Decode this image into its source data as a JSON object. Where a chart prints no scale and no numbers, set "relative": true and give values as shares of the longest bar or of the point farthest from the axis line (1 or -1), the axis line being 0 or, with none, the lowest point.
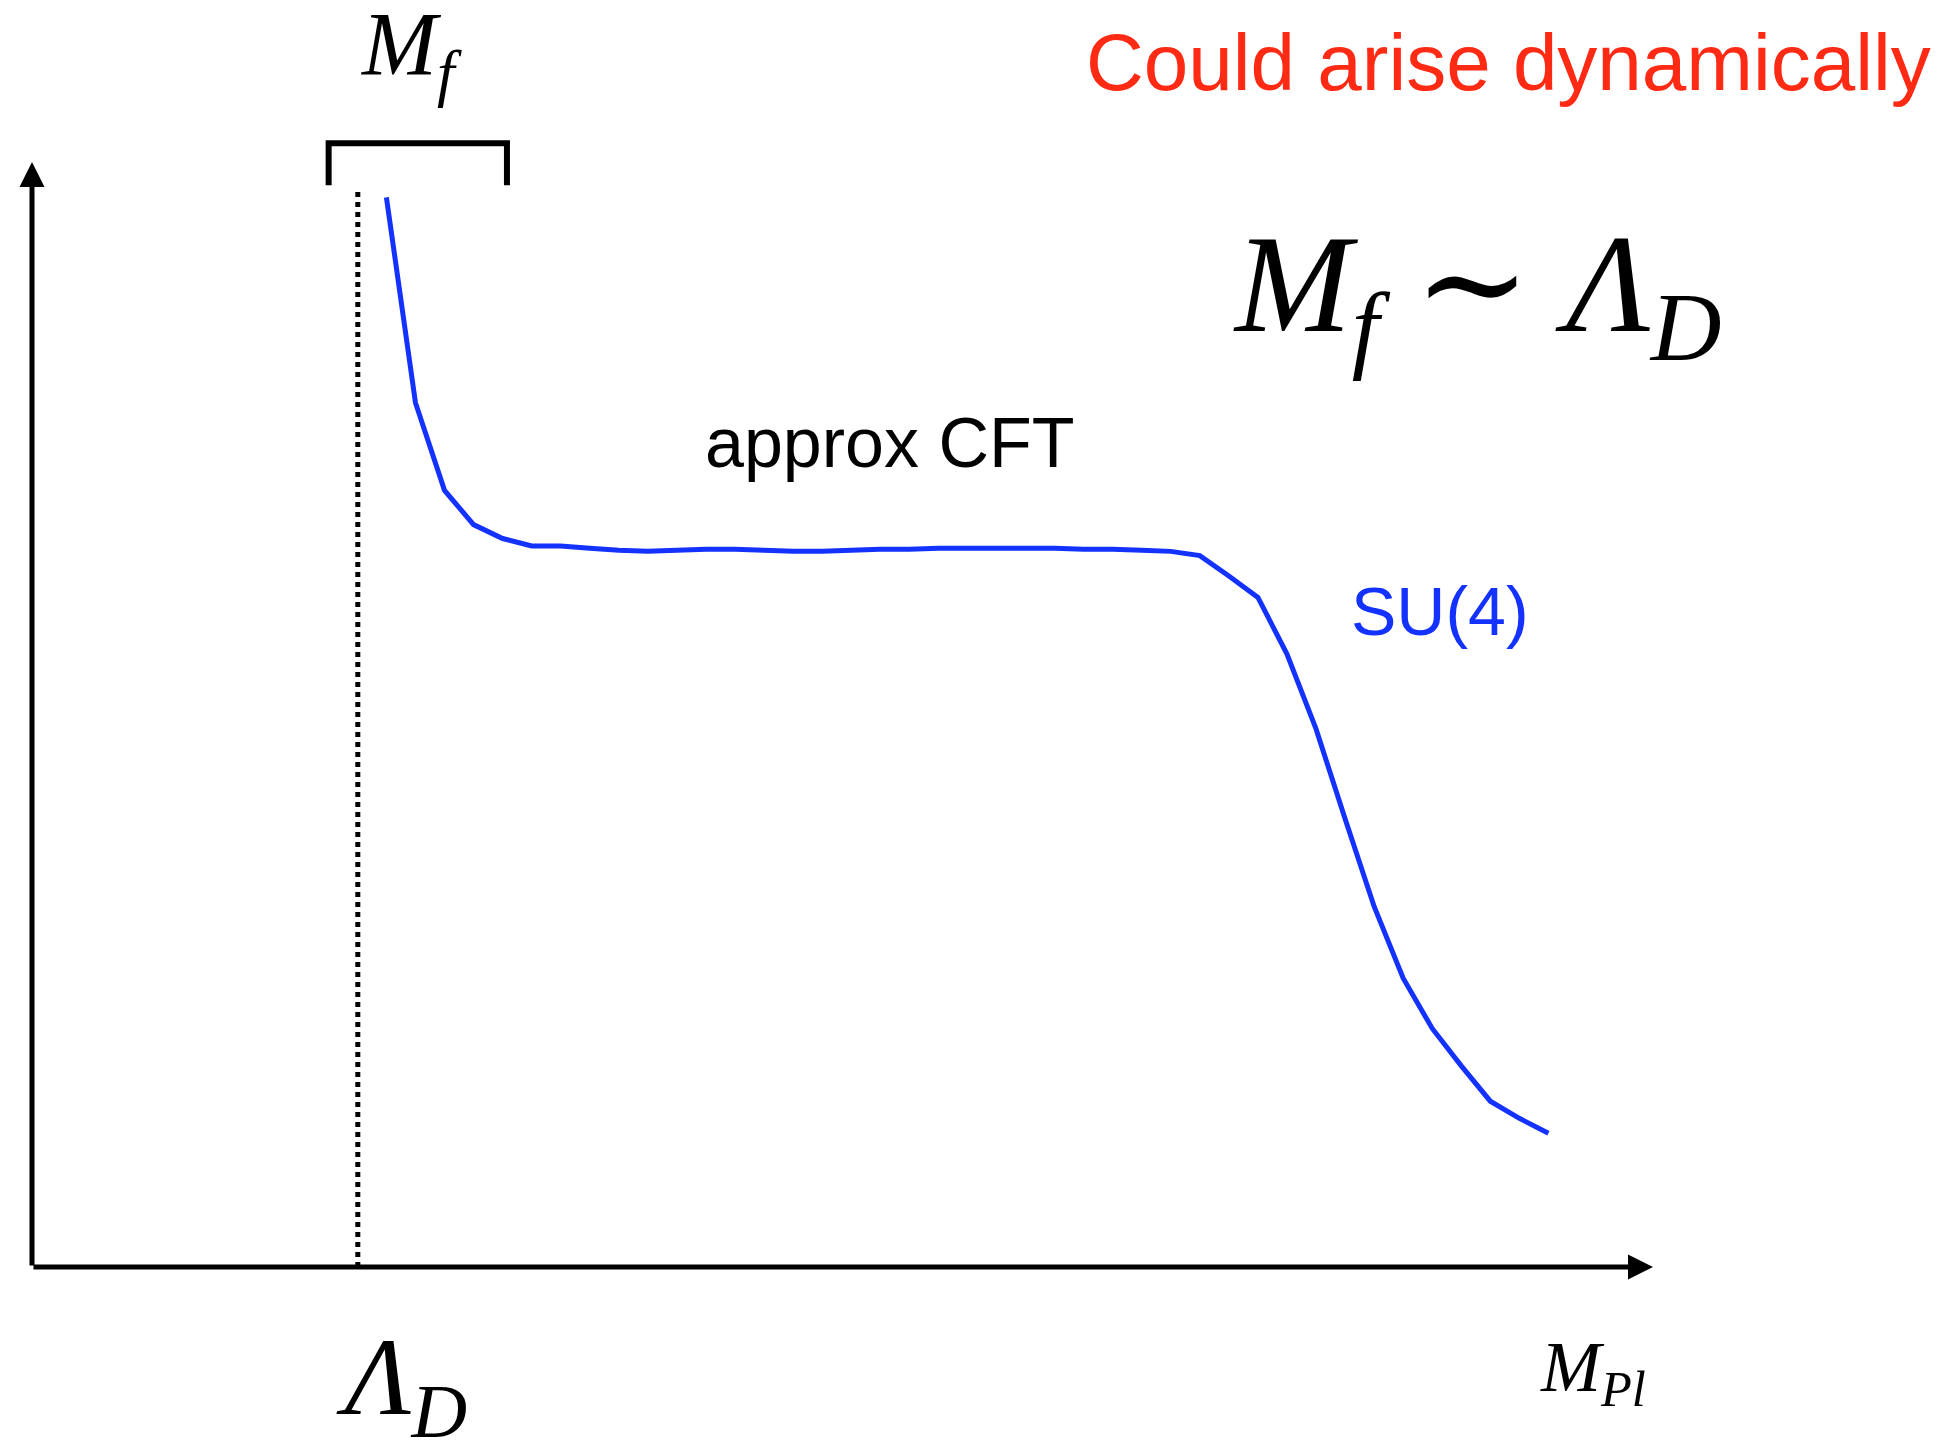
{
  "chart_data": {
    "type": "line",
    "relative": true,
    "legend": false,
    "marker": "none",
    "line_style": "solid",
    "xlabel": "M$_{Pl}$",
    "categories": [
      null,
      null,
      null,
      null,
      null,
      null,
      null,
      null,
      null,
      null,
      null,
      null,
      null,
      null,
      null,
      null,
      null,
      null,
      null,
      null,
      null,
      null,
      null,
      null,
      null,
      null,
      null,
      null,
      null,
      null,
      null,
      null,
      null,
      null,
      null,
      null,
      null,
      null,
      null,
      null,
      null
    ],
    "series": [
      {
        "name": "SU(4)",
        "color": "#1432ff",
        "values": [
          1.0,
          0.808,
          0.726,
          0.694,
          0.681,
          0.674,
          0.674,
          0.672,
          0.67,
          0.669,
          0.67,
          0.671,
          0.671,
          0.67,
          0.669,
          0.669,
          0.67,
          0.671,
          0.671,
          0.672,
          0.672,
          0.672,
          0.672,
          0.672,
          0.671,
          0.671,
          0.67,
          0.669,
          0.665,
          0.646,
          0.626,
          0.573,
          0.503,
          0.419,
          0.337,
          0.27,
          0.223,
          0.188,
          0.155,
          0.139,
          0.125
        ]
      }
    ],
    "annotations": [
      "Could arise dynamically",
      "M$_{f}$",
      "M$_{f}$ ∼ Λ$_{D}$",
      "approx CFT",
      "Λ$_{D}$"
    ]
  }
}
